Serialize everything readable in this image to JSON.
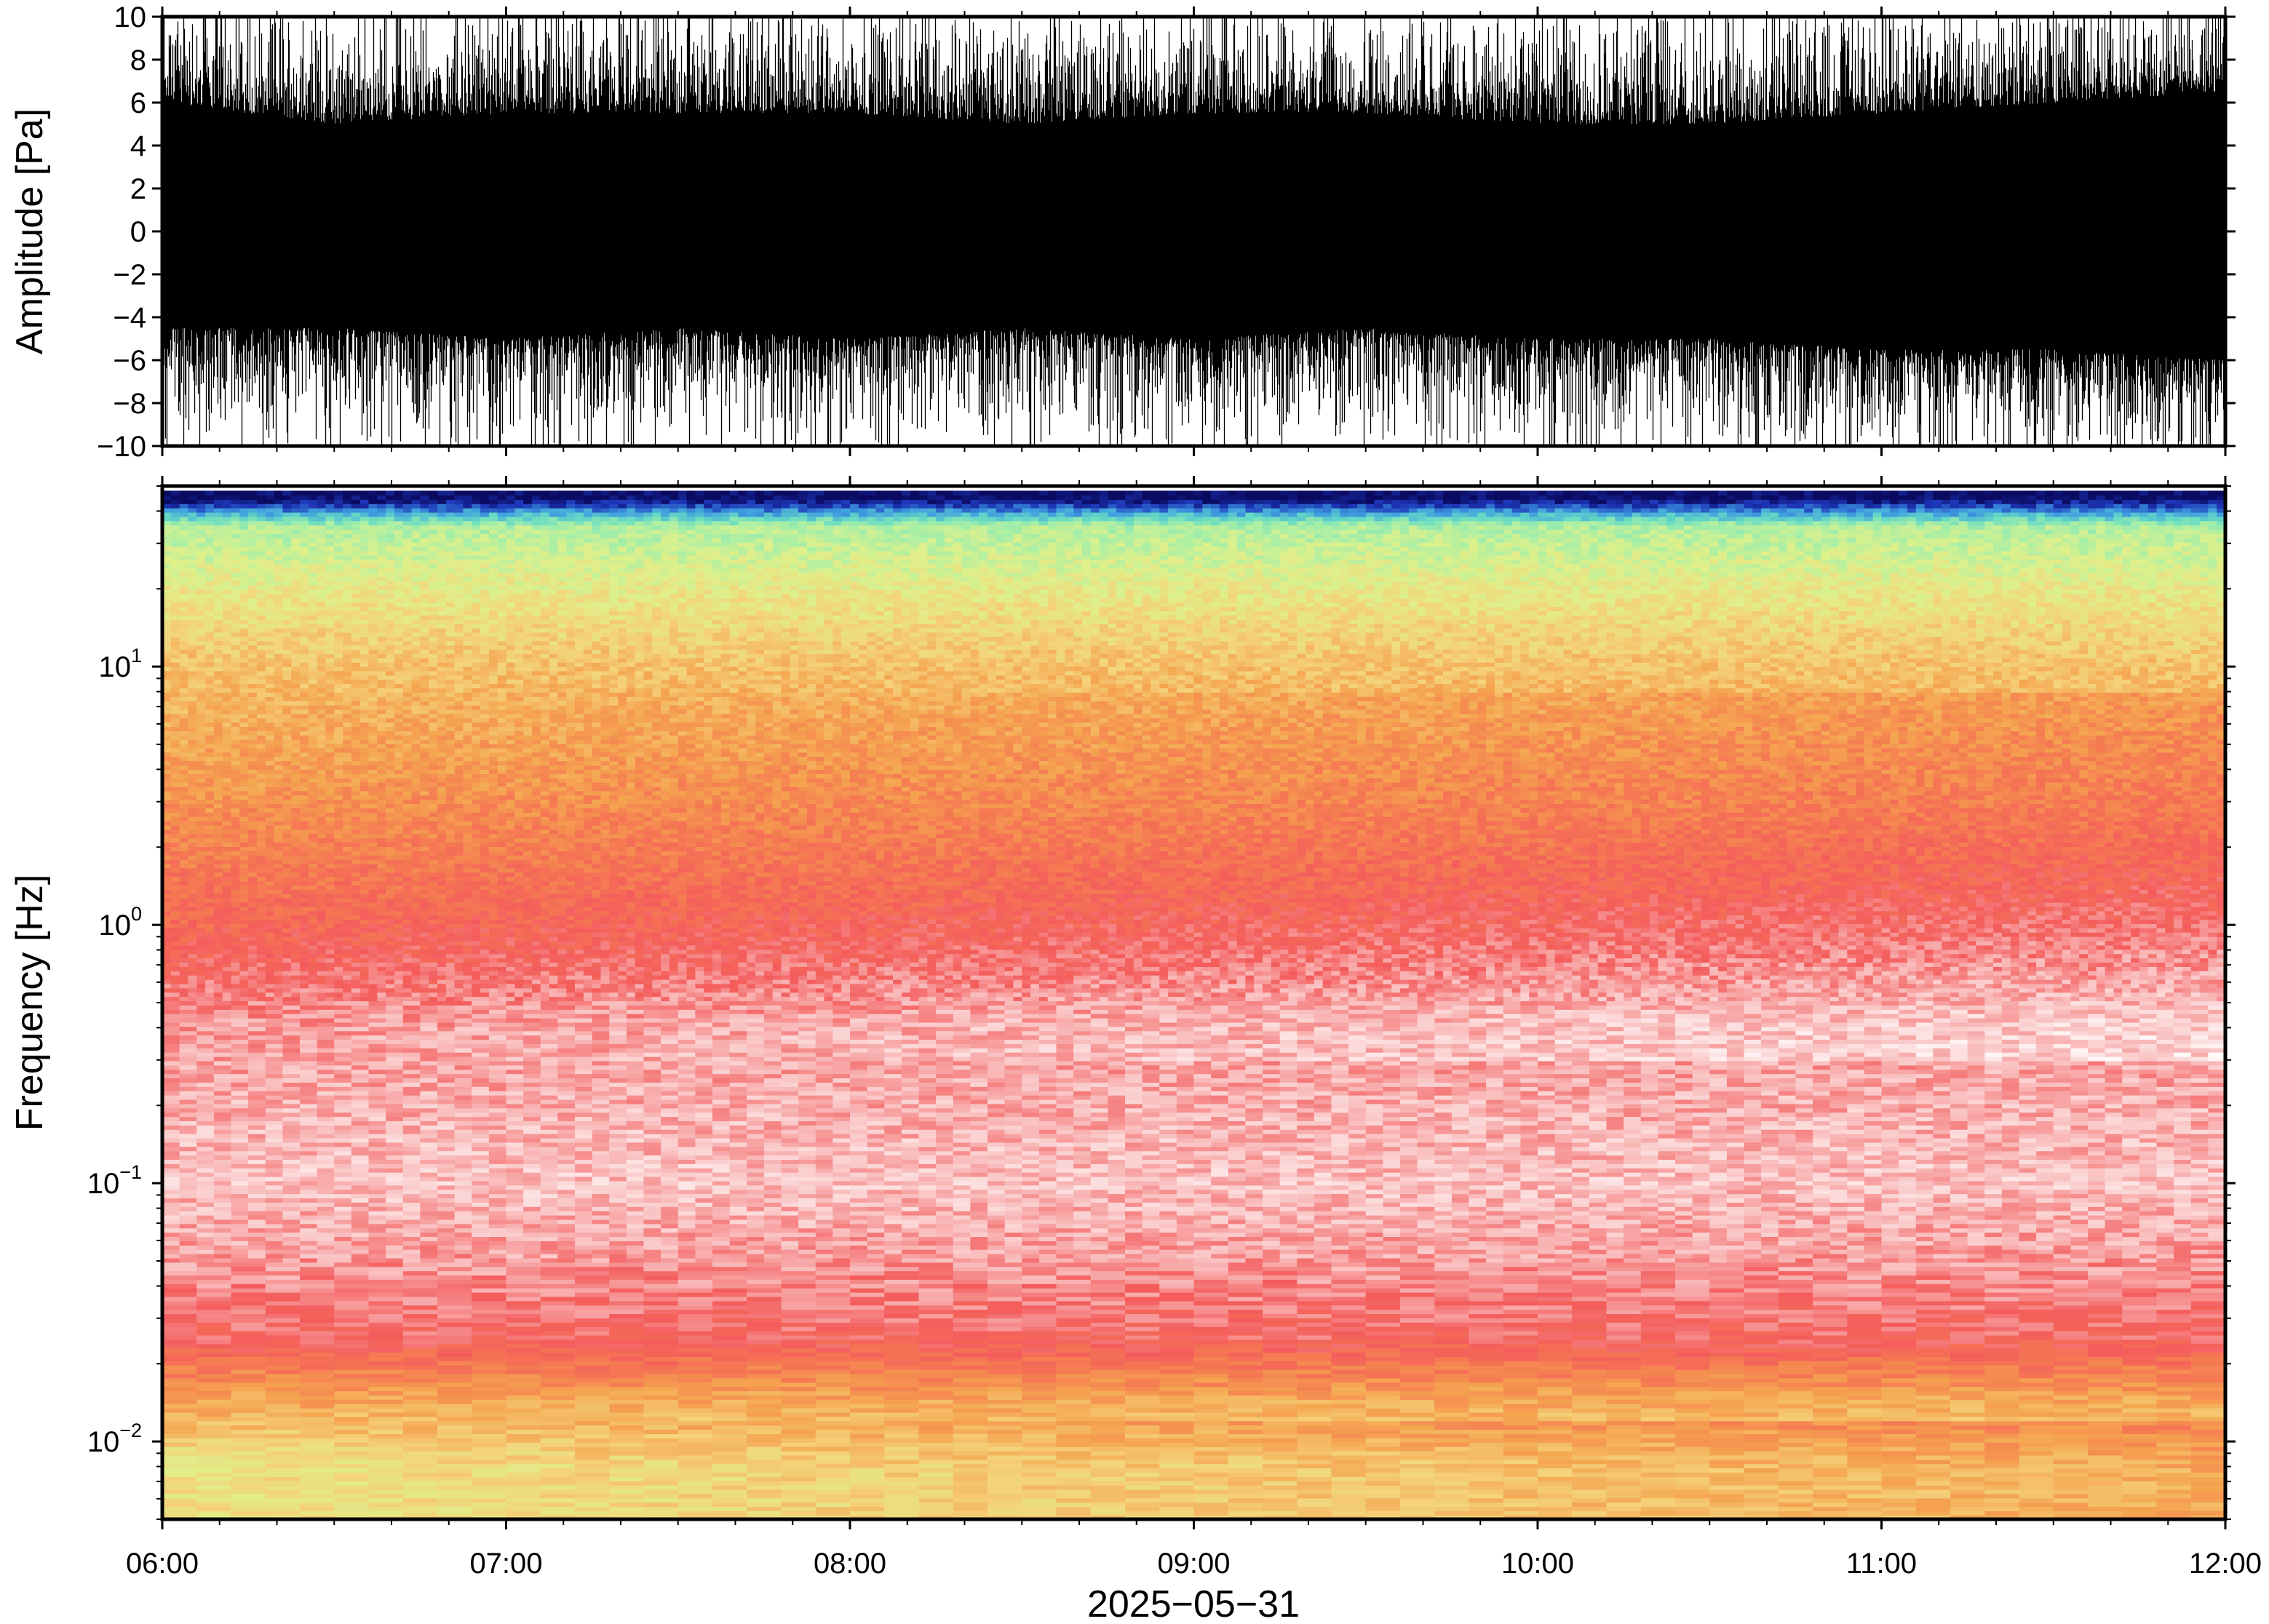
{
  "chart_data": [
    {
      "type": "line",
      "panel": "waveform",
      "ylabel": "Amplitude [Pa]",
      "ylim": [
        -10,
        10
      ],
      "yticks": [
        "10",
        "8",
        "6",
        "4",
        "2",
        "0",
        "−2",
        "−4",
        "−6",
        "−8",
        "−10"
      ],
      "ytick_values": [
        10,
        8,
        6,
        4,
        2,
        0,
        -2,
        -4,
        -6,
        -8,
        -10
      ],
      "xlim": [
        "06:00",
        "12:00"
      ],
      "series": [
        {
          "color": "#000000",
          "envelope_x": [
            "06:00",
            "06:30",
            "07:00",
            "07:30",
            "08:00",
            "08:30",
            "09:00",
            "09:30",
            "10:00",
            "10:30",
            "11:00",
            "11:30",
            "12:00"
          ],
          "envelope_upper": [
            6.0,
            5.0,
            5.5,
            5.5,
            5.5,
            5.0,
            5.5,
            5.5,
            5.0,
            5.0,
            5.5,
            6.0,
            6.5
          ],
          "envelope_lower": [
            -4.5,
            -4.5,
            -5.0,
            -4.5,
            -5.0,
            -4.5,
            -5.0,
            -4.5,
            -5.0,
            -5.0,
            -5.5,
            -5.5,
            -6.0
          ],
          "peak_upper": 10,
          "peak_lower": -10
        }
      ]
    },
    {
      "type": "heatmap",
      "panel": "spectrogram",
      "ylabel": "Frequency [Hz]",
      "yscale": "log",
      "ylim": [
        0.005,
        50
      ],
      "yticks": [
        {
          "base": "10",
          "exp": "1",
          "value": 10
        },
        {
          "base": "10",
          "exp": "0",
          "value": 1
        },
        {
          "base": "10",
          "exp": "−1",
          "value": 0.1
        },
        {
          "base": "10",
          "exp": "−2",
          "value": 0.01
        }
      ],
      "xlabel": "2025−05−31",
      "xticks": [
        "06:00",
        "07:00",
        "08:00",
        "09:00",
        "10:00",
        "11:00",
        "12:00"
      ],
      "xlim": [
        "06:00",
        "12:00"
      ],
      "colormap": [
        "#ffffff",
        "#f9b8b8",
        "#f45c5c",
        "#f57a52",
        "#f5a550",
        "#f4d27a",
        "#dff08a",
        "#a8efa6",
        "#66dbc4",
        "#3f9ee0",
        "#1d36b8",
        "#0a0a60"
      ],
      "band_levels": [
        {
          "freq_hz": 45,
          "level": 1.0
        },
        {
          "freq_hz": 35,
          "level": 0.62
        },
        {
          "freq_hz": 20,
          "level": 0.52
        },
        {
          "freq_hz": 10,
          "level": 0.42
        },
        {
          "freq_hz": 3,
          "level": 0.33
        },
        {
          "freq_hz": 1,
          "level": 0.22
        },
        {
          "freq_hz": 0.4,
          "level": 0.12
        },
        {
          "freq_hz": 0.1,
          "level": 0.08
        },
        {
          "freq_hz": 0.05,
          "level": 0.12
        },
        {
          "freq_hz": 0.025,
          "level": 0.18
        },
        {
          "freq_hz": 0.015,
          "level": 0.36
        },
        {
          "freq_hz": 0.008,
          "level": 0.5
        }
      ]
    }
  ]
}
